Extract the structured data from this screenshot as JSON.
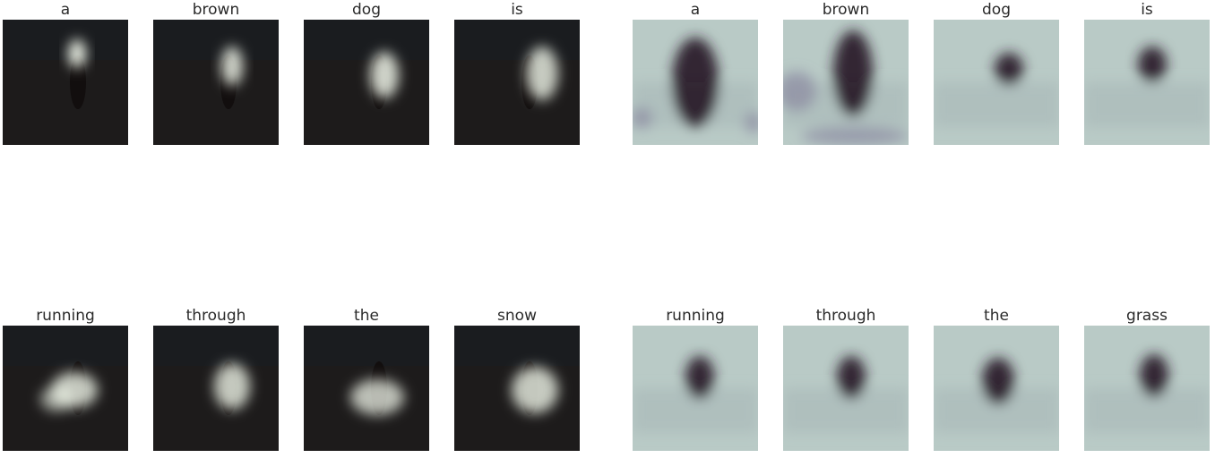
{
  "left_group": {
    "words": [
      "a",
      "brown",
      "dog",
      "is",
      "running",
      "through",
      "the",
      "snow"
    ],
    "colors": {
      "background": "#2c2a2a",
      "highlight": "#f0f6ea",
      "grass": "#1d1b1b"
    }
  },
  "right_group": {
    "words": [
      "a",
      "brown",
      "dog",
      "is",
      "running",
      "through",
      "the",
      "grass"
    ],
    "colors": {
      "background": "#b9cac6",
      "dark": "#2a1f2a",
      "mid": "#8d8ea3"
    }
  }
}
